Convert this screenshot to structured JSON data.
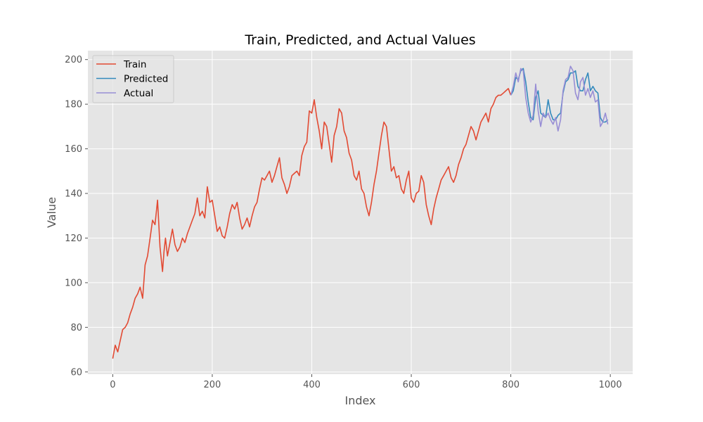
{
  "chart_data": {
    "type": "line",
    "title": "Train, Predicted, and Actual Values",
    "xlabel": "Index",
    "ylabel": "Value",
    "xlim": [
      -50,
      1045
    ],
    "ylim": [
      59,
      204
    ],
    "x_ticks": [
      0,
      200,
      400,
      600,
      800,
      1000
    ],
    "y_ticks": [
      60,
      80,
      100,
      120,
      140,
      160,
      180,
      200
    ],
    "grid": true,
    "legend_position": "top-left",
    "series": [
      {
        "name": "Train",
        "color": "#e24a33",
        "x": [
          0,
          5,
          10,
          15,
          20,
          25,
          30,
          35,
          40,
          45,
          50,
          55,
          60,
          65,
          70,
          75,
          80,
          85,
          90,
          95,
          100,
          103,
          106,
          110,
          115,
          120,
          125,
          130,
          135,
          140,
          145,
          150,
          155,
          160,
          165,
          170,
          175,
          180,
          185,
          190,
          195,
          200,
          205,
          210,
          215,
          220,
          225,
          230,
          235,
          240,
          245,
          250,
          255,
          260,
          265,
          270,
          275,
          280,
          285,
          290,
          295,
          300,
          305,
          310,
          315,
          320,
          325,
          330,
          335,
          340,
          345,
          350,
          355,
          360,
          365,
          370,
          375,
          380,
          385,
          390,
          395,
          400,
          405,
          410,
          415,
          420,
          425,
          430,
          435,
          440,
          445,
          450,
          455,
          460,
          465,
          470,
          475,
          480,
          485,
          490,
          495,
          500,
          505,
          510,
          515,
          520,
          525,
          530,
          535,
          540,
          545,
          550,
          555,
          560,
          565,
          570,
          575,
          580,
          585,
          590,
          595,
          600,
          605,
          610,
          615,
          620,
          625,
          630,
          635,
          640,
          645,
          650,
          655,
          660,
          665,
          670,
          675,
          680,
          685,
          690,
          695,
          700,
          705,
          710,
          715,
          720,
          725,
          730,
          735,
          740,
          745,
          750,
          755,
          760,
          765,
          770,
          775,
          780,
          785,
          790,
          795,
          800
        ],
        "values": [
          66,
          72,
          69,
          74,
          79,
          80,
          82,
          86,
          89,
          93,
          95,
          98,
          93,
          108,
          112,
          120,
          128,
          126,
          137,
          116,
          105,
          114,
          120,
          112,
          118,
          124,
          117,
          114,
          116,
          120,
          118,
          122,
          125,
          128,
          131,
          138,
          130,
          132,
          129,
          143,
          136,
          137,
          130,
          123,
          125,
          121,
          120,
          125,
          131,
          135,
          133,
          136,
          129,
          124,
          126,
          129,
          125,
          130,
          134,
          136,
          142,
          147,
          146,
          148,
          150,
          145,
          148,
          152,
          156,
          147,
          144,
          140,
          143,
          148,
          149,
          150,
          148,
          157,
          161,
          163,
          177,
          176,
          182,
          174,
          168,
          160,
          172,
          170,
          162,
          154,
          166,
          170,
          178,
          176,
          168,
          165,
          158,
          155,
          148,
          146,
          150,
          142,
          140,
          134,
          130,
          136,
          144,
          150,
          158,
          166,
          172,
          170,
          160,
          150,
          152,
          147,
          148,
          142,
          140,
          146,
          150,
          138,
          136,
          140,
          141,
          148,
          145,
          135,
          130,
          126,
          133,
          138,
          142,
          146,
          148,
          150,
          152,
          147,
          145,
          148,
          153,
          156,
          160,
          162,
          166,
          170,
          168,
          164,
          168,
          172,
          174,
          176,
          172,
          178,
          180,
          183,
          184,
          184,
          185,
          186,
          187,
          184
        ]
      },
      {
        "name": "Predicted",
        "color": "#348abd",
        "x": [
          800,
          805,
          810,
          815,
          820,
          825,
          830,
          835,
          840,
          845,
          850,
          855,
          860,
          865,
          870,
          875,
          880,
          885,
          890,
          895,
          900,
          905,
          910,
          915,
          920,
          925,
          930,
          935,
          940,
          945,
          950,
          955,
          960,
          965,
          970,
          975,
          980,
          985,
          990,
          995
        ],
        "values": [
          184,
          186,
          192,
          191,
          195,
          196,
          190,
          181,
          174,
          173,
          183,
          186,
          176,
          175,
          174,
          182,
          176,
          173,
          173,
          175,
          176,
          185,
          190,
          191,
          194,
          194,
          195,
          188,
          186,
          186,
          191,
          194,
          186,
          188,
          186,
          185,
          174,
          172,
          172,
          173
        ]
      },
      {
        "name": "Actual",
        "color": "#988ed5",
        "x": [
          800,
          805,
          810,
          815,
          820,
          825,
          830,
          835,
          840,
          845,
          850,
          855,
          860,
          865,
          870,
          875,
          880,
          885,
          890,
          895,
          900,
          905,
          910,
          915,
          920,
          925,
          930,
          935,
          940,
          945,
          950,
          955,
          960,
          965,
          970,
          975,
          980,
          985,
          990,
          995
        ],
        "values": [
          184,
          188,
          194,
          190,
          196,
          195,
          183,
          176,
          172,
          175,
          189,
          177,
          170,
          176,
          174,
          176,
          173,
          171,
          174,
          168,
          173,
          186,
          191,
          192,
          197,
          195,
          185,
          182,
          190,
          192,
          184,
          187,
          183,
          186,
          181,
          182,
          170,
          172,
          176,
          171
        ]
      }
    ]
  }
}
